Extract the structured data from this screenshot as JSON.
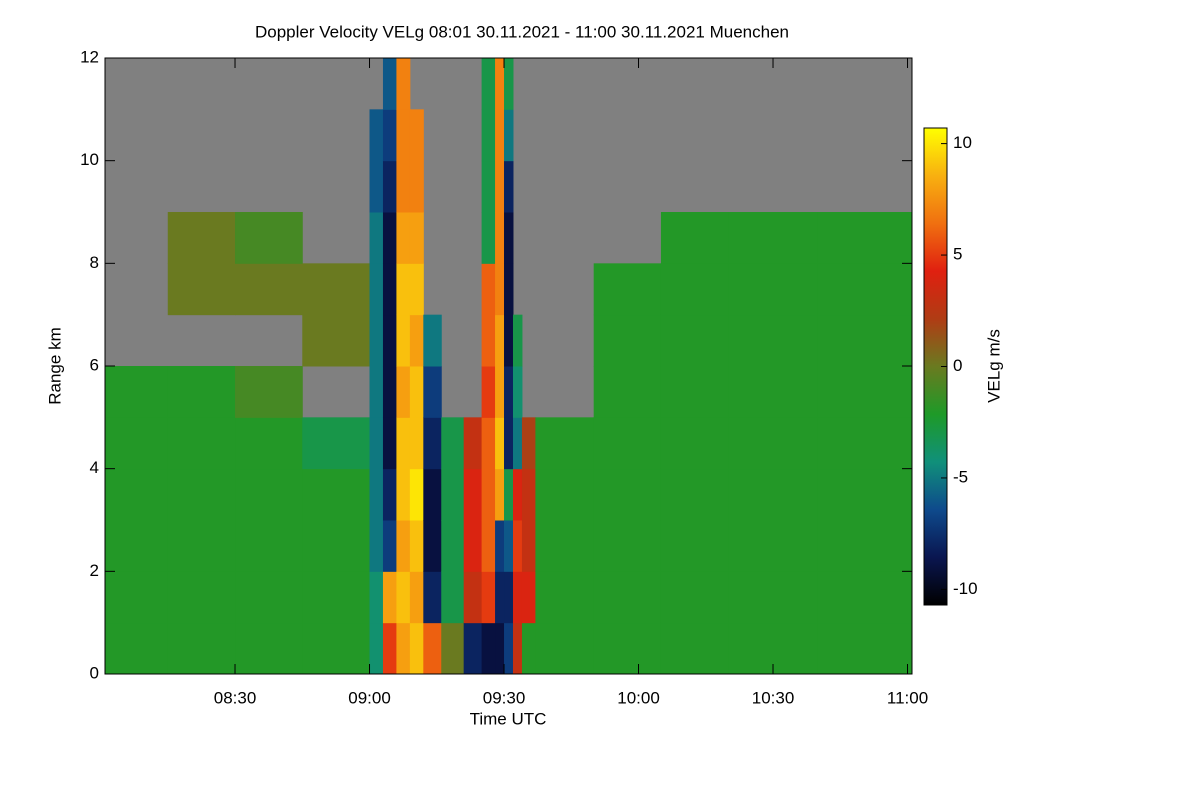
{
  "chart_data": {
    "type": "heatmap",
    "title": "Doppler Velocity VELg   08:01 30.11.2021 - 11:00 30.11.2021 Muenchen",
    "x_label": "Time UTC",
    "y_label": "Range km",
    "colorbar_label": "VELg m/s",
    "xlim": [
      481,
      661
    ],
    "ylim": [
      0,
      12
    ],
    "xticks": [
      {
        "value": 510,
        "label": "08:30"
      },
      {
        "value": 540,
        "label": "09:00"
      },
      {
        "value": 570,
        "label": "09:30"
      },
      {
        "value": 600,
        "label": "10:00"
      },
      {
        "value": 630,
        "label": "10:30"
      },
      {
        "value": 660,
        "label": "11:00"
      }
    ],
    "yticks": [
      0,
      2,
      4,
      6,
      8,
      10,
      12
    ],
    "clim": [
      -10.7,
      10.7
    ],
    "cticks": [
      -10,
      -5,
      0,
      5,
      10
    ],
    "colors": [
      "#000000",
      "#0a1650",
      "#0e4a8c",
      "#10907a",
      "#1e9a28",
      "#6a7a20",
      "#b03c14",
      "#e02010",
      "#f07010",
      "#f8b010",
      "#ffff00"
    ],
    "missing_color": "#808080",
    "xbins": [
      481,
      495,
      510,
      525,
      540,
      543,
      546,
      549,
      552,
      556,
      561,
      565,
      568,
      570,
      572,
      574,
      577,
      590,
      605,
      620,
      640,
      661
    ],
    "ybins": [
      0,
      1,
      2,
      3,
      4,
      5,
      6,
      7,
      8,
      9,
      10,
      11,
      12
    ],
    "values": [
      [
        -2,
        -2,
        -2,
        -2,
        -2,
        -2,
        null,
        null,
        null,
        null,
        null,
        null
      ],
      [
        -2,
        -2,
        -2,
        -2,
        -2,
        -2,
        null,
        0,
        0,
        null,
        null,
        null
      ],
      [
        -2,
        -2,
        -2,
        -2,
        -2,
        -1,
        null,
        0,
        -1,
        null,
        null,
        null
      ],
      [
        -2,
        -2,
        -2,
        -2,
        -3,
        null,
        0,
        0,
        null,
        null,
        null,
        null
      ],
      [
        -4,
        -4,
        -5,
        -5,
        -5,
        -5,
        -5,
        -5,
        -5,
        -6,
        -6,
        null
      ],
      [
        5,
        8,
        -7,
        -8,
        -9,
        -9,
        -9,
        -9,
        -9,
        -8,
        -7,
        -6
      ],
      [
        8,
        9,
        8,
        9,
        9,
        8,
        9,
        9,
        8,
        7,
        7,
        7
      ],
      [
        9,
        8,
        9,
        10,
        9,
        9,
        8,
        9,
        8,
        7,
        7,
        null
      ],
      [
        6,
        -8,
        -9,
        -9,
        -8,
        -7,
        -5,
        null,
        null,
        null,
        null,
        null
      ],
      [
        0,
        -3,
        -3,
        -3,
        -3,
        null,
        null,
        null,
        null,
        null,
        null,
        null
      ],
      [
        -8,
        3,
        4,
        4,
        3,
        null,
        null,
        null,
        null,
        null,
        null,
        null
      ],
      [
        -9,
        5,
        6,
        6,
        6,
        5,
        6,
        6,
        -3,
        -3,
        -3,
        -3
      ],
      [
        -9,
        -8,
        -7,
        8,
        9,
        8,
        8,
        7,
        7,
        7,
        7,
        7
      ],
      [
        -7,
        -8,
        -6,
        -3,
        -8,
        -8,
        -9,
        -9,
        -9,
        -8,
        -5,
        -3
      ],
      [
        3,
        4,
        5,
        4,
        -5,
        -4,
        -3,
        null,
        null,
        null,
        null,
        null
      ],
      [
        -2,
        4,
        3,
        3,
        2,
        null,
        null,
        null,
        null,
        null,
        null,
        null
      ],
      [
        -2,
        -2,
        -2,
        -2,
        -2,
        null,
        null,
        null,
        null,
        null,
        null,
        null
      ],
      [
        -2,
        -2,
        -2,
        -2,
        -2,
        -2,
        -2,
        -2,
        null,
        null,
        null,
        null
      ],
      [
        -2,
        -2,
        -2,
        -2,
        -2,
        -2,
        -2,
        -2,
        -2,
        null,
        null,
        null
      ],
      [
        -2,
        -2,
        -2,
        -2,
        -2,
        -2,
        -2,
        -2,
        -2,
        null,
        null,
        null
      ],
      [
        -2,
        -2,
        -2,
        -2,
        -2,
        -2,
        -2,
        -2,
        -2,
        null,
        null,
        null
      ]
    ]
  }
}
